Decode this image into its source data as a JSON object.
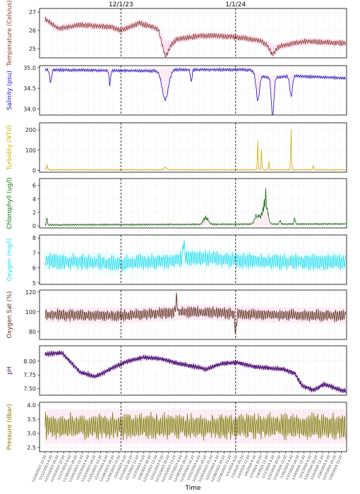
{
  "chart_data": {
    "type": "line",
    "xlabel": "Time",
    "vlines": [
      {
        "label": "12/1/23",
        "date": "2023-12-01"
      },
      {
        "label": "1/1/24",
        "date": "2024-01-01"
      }
    ],
    "x_range": [
      "2023-11-09",
      "2024-01-31"
    ],
    "x_tick_labels": [
      "11/10/2023 12:20",
      "11/12/2023 4:20",
      "11/13/2023 20:20",
      "11/15/2023 12:20",
      "11/17/2023 4:20",
      "11/18/2023 20:20",
      "11/20/2023 12:20",
      "11/22/2023 4:20",
      "11/23/2023 20:20",
      "11/25/2023 12:20",
      "11/27/2023 4:20",
      "11/28/2023 20:20",
      "11/30/2023 12:20",
      "12/2/2023 4:20",
      "12/3/2023 20:20",
      "12/5/2023 12:20",
      "12/7/2023 4:20",
      "12/8/2023 20:20",
      "12/10/2023 12:20",
      "12/12/2023 4:20",
      "12/13/2023 20:20",
      "12/15/2023 12:20",
      "12/17/2023 4:20",
      "12/18/2023 20:20",
      "12/20/2023 12:20",
      "12/22/2023 4:20",
      "12/23/2023 20:20",
      "12/25/2023 12:20",
      "12/27/2023 4:20",
      "12/28/2023 20:20",
      "12/30/2023 12:20",
      "1/1/2024 4:20",
      "1/2/2024 20:20",
      "1/4/2024 12:20",
      "1/6/2024 4:20",
      "1/7/2024 20:20",
      "1/9/2024 12:20",
      "1/11/2024 4:20",
      "1/12/2024 20:20",
      "1/14/2024 12:20",
      "1/16/2024 4:20",
      "1/17/2024 20:20",
      "1/19/2024 12:20",
      "1/21/2024 4:20",
      "1/22/2024 20:20",
      "1/24/2024 12:20",
      "1/26/2024 4:20",
      "1/27/2024 20:20",
      "1/29/2024 12:20"
    ],
    "panels": [
      {
        "id": "temperature",
        "ylabel": "Temperature (Celsius)",
        "color": "#8B3A2A",
        "band": "#ff66cc",
        "ylim": [
          24.5,
          27.2
        ],
        "yticks": [
          25,
          26,
          27
        ],
        "tick_labels": [
          "25",
          "26",
          "27"
        ],
        "knots": [
          [
            "2023-11-10",
            26.7
          ],
          [
            "2023-11-14",
            26.1
          ],
          [
            "2023-11-20",
            26.3
          ],
          [
            "2023-11-28",
            26.2
          ],
          [
            "2023-12-01",
            26.0
          ],
          [
            "2023-12-06",
            26.4
          ],
          [
            "2023-12-11",
            26.1
          ],
          [
            "2023-12-13",
            25.2
          ],
          [
            "2023-12-15",
            25.3
          ],
          [
            "2023-12-16",
            25.5
          ],
          [
            "2023-12-22",
            25.7
          ],
          [
            "2023-12-28",
            25.7
          ],
          [
            "2024-01-03",
            25.6
          ],
          [
            "2024-01-08",
            25.4
          ],
          [
            "2024-01-11",
            25.0
          ],
          [
            "2024-01-14",
            25.2
          ],
          [
            "2024-01-20",
            25.4
          ],
          [
            "2024-01-30",
            25.3
          ]
        ],
        "amp": 0.12,
        "dips": [
          [
            "2023-12-13",
            -0.6,
            1.2
          ],
          [
            "2024-01-11",
            -0.3,
            1
          ]
        ]
      },
      {
        "id": "salinity",
        "ylabel": "Salinity (psu)",
        "color": "#1a0fbf",
        "band": "#ff99cc",
        "ylim": [
          33.85,
          35.05
        ],
        "yticks": [
          34.0,
          34.5,
          35.0
        ],
        "tick_labels": [
          "34.0",
          "34.5",
          "35.0"
        ],
        "knots": [
          [
            "2023-11-10",
            34.95
          ],
          [
            "2023-11-30",
            34.93
          ],
          [
            "2023-12-12",
            34.92
          ],
          [
            "2023-12-15",
            34.95
          ],
          [
            "2024-01-05",
            34.95
          ],
          [
            "2024-01-07",
            34.8
          ],
          [
            "2024-01-11",
            34.75
          ],
          [
            "2024-01-16",
            34.8
          ],
          [
            "2024-01-30",
            34.75
          ]
        ],
        "amp": 0.03,
        "dips": [
          [
            "2023-11-12",
            -0.3,
            0.4
          ],
          [
            "2023-11-28",
            -0.35,
            0.3
          ],
          [
            "2023-12-13",
            -0.7,
            1.2
          ],
          [
            "2023-12-20",
            -0.3,
            0.3
          ],
          [
            "2024-01-07",
            -0.6,
            0.6
          ],
          [
            "2024-01-11",
            -0.95,
            0.5
          ],
          [
            "2024-01-16",
            -0.5,
            0.5
          ]
        ]
      },
      {
        "id": "turbidity",
        "ylabel": "Turbidity (NTU)",
        "color": "#c8b400",
        "band": "#ff99cc",
        "ylim": [
          -8,
          235
        ],
        "yticks": [
          0,
          100,
          200
        ],
        "tick_labels": [
          "0",
          "100",
          "200"
        ],
        "knots": [
          [
            "2023-11-10",
            4
          ],
          [
            "2024-01-30",
            4
          ]
        ],
        "amp": 2,
        "dips": [
          [
            "2023-11-11",
            25,
            0.3
          ],
          [
            "2023-12-13",
            15,
            0.5
          ],
          [
            "2024-01-07",
            178,
            0.2
          ],
          [
            "2024-01-08",
            110,
            0.2
          ],
          [
            "2024-01-10",
            60,
            0.2
          ],
          [
            "2024-01-16",
            215,
            0.2
          ],
          [
            "2024-01-22",
            20,
            0.3
          ]
        ]
      },
      {
        "id": "chlorophyll",
        "ylabel": "Chlorophyll (ug/l)",
        "color": "#0a6e0a",
        "band": "#ff99cc",
        "ylim": [
          -0.3,
          7
        ],
        "yticks": [
          0,
          2,
          4,
          6
        ],
        "tick_labels": [
          "0",
          "2",
          "4",
          "6"
        ],
        "knots": [
          [
            "2023-11-10",
            0.15
          ],
          [
            "2024-01-30",
            0.3
          ]
        ],
        "amp": 0.1,
        "dips": [
          [
            "2023-11-11",
            1.5,
            0.2
          ],
          [
            "2023-12-24",
            1.8,
            0.8
          ],
          [
            "2024-01-07",
            2.0,
            1
          ],
          [
            "2024-01-09",
            5.5,
            0.8
          ],
          [
            "2024-01-13",
            0.8,
            0.3
          ],
          [
            "2024-01-17",
            1.3,
            0.2
          ]
        ]
      },
      {
        "id": "oxygen",
        "ylabel": "Oxygen (mg/l)",
        "color": "#22ddee",
        "band": "#bbffff",
        "ylim": [
          4.9,
          8.2
        ],
        "yticks": [
          5,
          6,
          7,
          8
        ],
        "tick_labels": [
          "5",
          "6",
          "7",
          "8"
        ],
        "knots": [
          [
            "2023-11-10",
            6.5
          ],
          [
            "2023-12-01",
            6.3
          ],
          [
            "2023-12-14",
            6.5
          ],
          [
            "2023-12-20",
            6.7
          ],
          [
            "2024-01-10",
            6.4
          ],
          [
            "2024-01-30",
            6.4
          ]
        ],
        "amp": 0.45,
        "dips": [
          [
            "2023-12-18",
            1.2,
            0.3
          ]
        ]
      },
      {
        "id": "oxygen_sat",
        "ylabel": "Oxygen Sat (%)",
        "color": "#5a2a1a",
        "band": "#ff99cc",
        "ylim": [
          72,
          122
        ],
        "yticks": [
          80,
          100,
          120
        ],
        "tick_labels": [
          "80",
          "100",
          "120"
        ],
        "knots": [
          [
            "2023-11-10",
            97
          ],
          [
            "2023-12-01",
            96
          ],
          [
            "2023-12-20",
            100
          ],
          [
            "2024-01-10",
            97
          ],
          [
            "2024-01-30",
            96
          ]
        ],
        "amp": 5,
        "dips": [
          [
            "2023-12-16",
            15,
            0.3
          ],
          [
            "2024-01-01",
            -20,
            0.3
          ]
        ]
      },
      {
        "id": "ph",
        "ylabel": "pH",
        "color": "#4b1a7a",
        "band": "#ff66cc",
        "ylim": [
          7.38,
          8.28
        ],
        "yticks": [
          7.5,
          7.75,
          8.0
        ],
        "tick_labels": [
          "7.50",
          "7.75",
          "8.00"
        ],
        "knots": [
          [
            "2023-11-10",
            8.13
          ],
          [
            "2023-11-15",
            8.15
          ],
          [
            "2023-11-20",
            7.8
          ],
          [
            "2023-11-24",
            7.72
          ],
          [
            "2023-11-28",
            7.85
          ],
          [
            "2023-12-02",
            7.98
          ],
          [
            "2023-12-07",
            8.07
          ],
          [
            "2023-12-12",
            8.04
          ],
          [
            "2023-12-17",
            7.95
          ],
          [
            "2023-12-21",
            7.9
          ],
          [
            "2023-12-24",
            7.85
          ],
          [
            "2023-12-28",
            7.95
          ],
          [
            "2024-01-01",
            7.98
          ],
          [
            "2024-01-06",
            7.9
          ],
          [
            "2024-01-14",
            7.85
          ],
          [
            "2024-01-17",
            7.78
          ],
          [
            "2024-01-19",
            7.55
          ],
          [
            "2024-01-22",
            7.47
          ],
          [
            "2024-01-25",
            7.58
          ],
          [
            "2024-01-30",
            7.46
          ]
        ],
        "amp": 0.03,
        "dips": []
      },
      {
        "id": "pressure",
        "ylabel": "Pressure (dbar)",
        "color": "#7a7a00",
        "band": "#ff99cc",
        "ylim": [
          2.35,
          4.1
        ],
        "yticks": [
          2.5,
          3.0,
          3.5,
          4.0
        ],
        "tick_labels": [
          "2.5",
          "3.0",
          "3.5",
          "4.0"
        ],
        "knots": [
          [
            "2023-11-10",
            3.25
          ],
          [
            "2024-01-30",
            3.25
          ]
        ],
        "amp": 0.38,
        "dips": []
      }
    ]
  }
}
